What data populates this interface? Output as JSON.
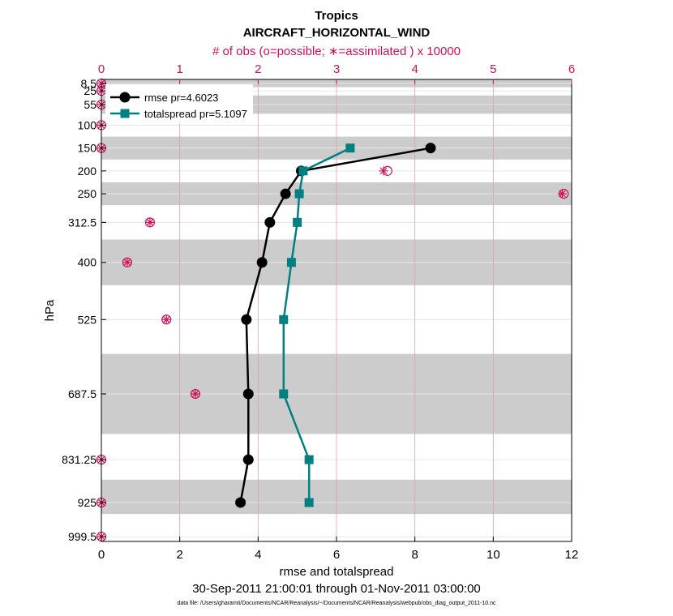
{
  "chart_data": {
    "type": "line",
    "title": "Tropics",
    "subtitle": "AIRCRAFT_HORIZONTAL_WIND",
    "top_axis_label": "# of obs (o=possible; ∗=assimilated ) x 10000",
    "xlabel": "rmse and totalspread",
    "ylabel": "hPa",
    "date_range": "30-Sep-2011 21:00:01 through 01-Nov-2011 03:00:00",
    "footnote": "data file: /Users/gharamti/Documents/NCAR/Reanalysis/~/Documents/NCAR/Reanalysis/webpub/obs_diag_output_2011-10.nc",
    "xlim": [
      0,
      12
    ],
    "x_ticks": [
      "0",
      "2",
      "4",
      "6",
      "8",
      "10",
      "12"
    ],
    "top_xlim": [
      0,
      6
    ],
    "top_ticks": [
      "0",
      "1",
      "2",
      "3",
      "4",
      "5",
      "6"
    ],
    "ylim": [
      1010,
      0
    ],
    "levels": [
      8.5,
      25,
      55,
      100,
      150,
      200,
      250,
      312.5,
      400,
      525,
      687.5,
      831.25,
      925,
      999.5
    ],
    "level_labels": [
      "8.5",
      "25",
      "55",
      "100",
      "150",
      "200",
      "250",
      "312.5",
      "400",
      "525",
      "687.5",
      "831.25",
      "925",
      "999.5"
    ],
    "shaded_bands": [
      [
        0,
        17
      ],
      [
        35,
        75
      ],
      [
        125,
        175
      ],
      [
        225,
        275
      ],
      [
        350,
        450
      ],
      [
        600,
        775
      ],
      [
        875,
        950
      ]
    ],
    "series": [
      {
        "name": "rmse pr=4.6023",
        "color": "#000000",
        "marker": "circle",
        "x": [
          8.4,
          5.1,
          4.7,
          4.3,
          4.1,
          3.7,
          3.75,
          3.75,
          3.55
        ],
        "y": [
          150,
          200,
          250,
          312.5,
          400,
          525,
          687.5,
          831.25,
          925
        ]
      },
      {
        "name": "totalspread pr=5.1097",
        "color": "#008080",
        "marker": "square",
        "x": [
          6.35,
          5.15,
          5.05,
          5.0,
          4.85,
          4.65,
          4.65,
          5.3,
          5.3
        ],
        "y": [
          150,
          200,
          250,
          312.5,
          400,
          525,
          687.5,
          831.25,
          925
        ]
      }
    ],
    "obs_counts": {
      "levels": [
        8.5,
        25,
        55,
        100,
        150,
        200,
        250,
        312.5,
        400,
        525,
        687.5,
        831.25,
        925,
        999.5
      ],
      "possible": [
        0,
        0,
        0,
        0,
        0,
        3.65,
        5.9,
        0.62,
        0.33,
        0.83,
        1.2,
        0,
        0,
        0
      ],
      "assimilated": [
        0,
        0,
        0,
        0,
        0,
        3.6,
        5.88,
        0.62,
        0.33,
        0.83,
        1.2,
        0,
        0,
        0
      ]
    },
    "colors": {
      "obs": "#d0105a",
      "band": "#cccccc",
      "grid_top": "#d9a0b8",
      "grid_y": "#e6e6e6"
    }
  }
}
